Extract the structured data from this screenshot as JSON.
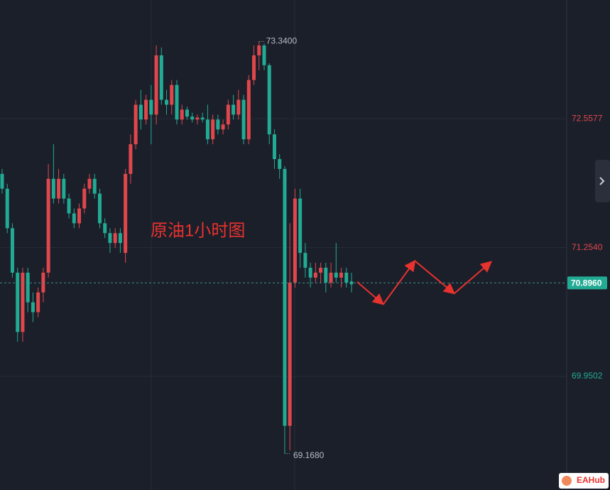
{
  "chart_data": {
    "type": "candlestick",
    "annotation": "原油1小时图",
    "up_color": "#e0474c",
    "down_color": "#22ab94",
    "open": [
      72.0,
      71.85,
      71.45,
      71.0,
      70.4,
      71.0,
      70.7,
      70.6,
      70.8,
      71.0,
      71.95,
      71.75,
      71.95,
      71.75,
      71.6,
      71.5,
      71.65,
      71.85,
      71.95,
      71.8,
      71.5,
      71.4,
      71.3,
      71.4,
      71.2,
      72.0,
      72.3,
      72.7,
      72.55,
      72.75,
      72.6,
      73.2,
      72.75,
      72.7,
      72.9,
      72.55,
      72.65,
      72.58,
      72.55,
      72.57,
      72.55,
      72.35,
      72.55,
      72.45,
      72.5,
      72.7,
      72.6,
      72.75,
      72.35,
      72.95,
      73.2,
      73.3,
      73.1,
      72.4,
      72.15,
      72.05,
      69.45,
      70.9,
      71.75,
      71.2,
      71.05,
      70.95,
      71.0,
      71.05,
      70.9,
      71.0,
      70.95,
      71.0,
      70.9
    ],
    "high": [
      72.05,
      71.9,
      71.5,
      71.05,
      71.05,
      71.05,
      70.8,
      70.85,
      71.05,
      72.1,
      72.3,
      72.05,
      72.0,
      71.8,
      71.65,
      71.7,
      71.9,
      72.0,
      72.0,
      71.85,
      71.55,
      71.45,
      71.45,
      71.45,
      72.05,
      72.4,
      72.75,
      72.85,
      72.8,
      72.9,
      73.3,
      73.28,
      72.85,
      72.95,
      72.95,
      72.7,
      72.68,
      72.62,
      72.6,
      72.62,
      72.7,
      72.6,
      72.6,
      72.55,
      72.75,
      72.8,
      72.85,
      72.8,
      73.0,
      73.3,
      73.34,
      73.32,
      73.12,
      72.45,
      72.2,
      72.08,
      71.5,
      71.85,
      71.85,
      71.3,
      71.1,
      71.1,
      71.1,
      71.1,
      71.1,
      71.3,
      71.05,
      71.05,
      71.0
    ],
    "low": [
      71.8,
      71.4,
      70.95,
      70.3,
      70.3,
      70.6,
      70.5,
      70.55,
      70.7,
      70.95,
      71.7,
      71.7,
      71.7,
      71.55,
      71.45,
      71.45,
      71.6,
      71.8,
      71.75,
      71.45,
      71.35,
      71.2,
      71.25,
      71.2,
      71.1,
      71.9,
      72.25,
      72.45,
      72.5,
      72.3,
      72.5,
      72.7,
      72.6,
      72.6,
      72.5,
      72.5,
      72.55,
      72.52,
      72.5,
      72.52,
      72.3,
      72.3,
      72.4,
      72.4,
      72.45,
      72.55,
      72.55,
      72.3,
      72.3,
      72.9,
      73.05,
      73.05,
      72.3,
      72.05,
      71.95,
      69.168,
      69.2,
      70.85,
      71.05,
      70.95,
      70.85,
      70.9,
      70.9,
      70.8,
      70.85,
      70.9,
      70.85,
      70.85,
      70.8
    ],
    "close": [
      71.85,
      71.45,
      71.0,
      70.4,
      71.0,
      70.7,
      70.6,
      70.8,
      71.0,
      71.95,
      71.75,
      71.95,
      71.75,
      71.6,
      71.5,
      71.65,
      71.85,
      71.95,
      71.8,
      71.5,
      71.4,
      71.3,
      71.4,
      71.3,
      72.0,
      72.3,
      72.7,
      72.55,
      72.75,
      72.6,
      73.2,
      72.75,
      72.7,
      72.9,
      72.55,
      72.65,
      72.58,
      72.55,
      72.57,
      72.55,
      72.35,
      72.55,
      72.45,
      72.5,
      72.7,
      72.6,
      72.75,
      72.35,
      72.95,
      73.2,
      73.3,
      73.1,
      72.4,
      72.15,
      72.05,
      69.45,
      70.9,
      71.75,
      71.2,
      71.05,
      70.95,
      71.0,
      71.05,
      70.9,
      71.0,
      70.95,
      71.0,
      70.9,
      70.896
    ],
    "ylim": [
      68.8,
      73.76
    ],
    "yticks": [
      72.5577,
      {
        "value": 71.254,
        "label": "71.2540"
      },
      69.9502
    ],
    "max_label": {
      "value": 73.34,
      "label": "73.3400"
    },
    "min_label": {
      "value": 69.168,
      "label": "69.1680"
    },
    "current_price": {
      "value": 70.896,
      "label": "70.8960"
    },
    "grid": true
  },
  "watermark": "EAHub"
}
